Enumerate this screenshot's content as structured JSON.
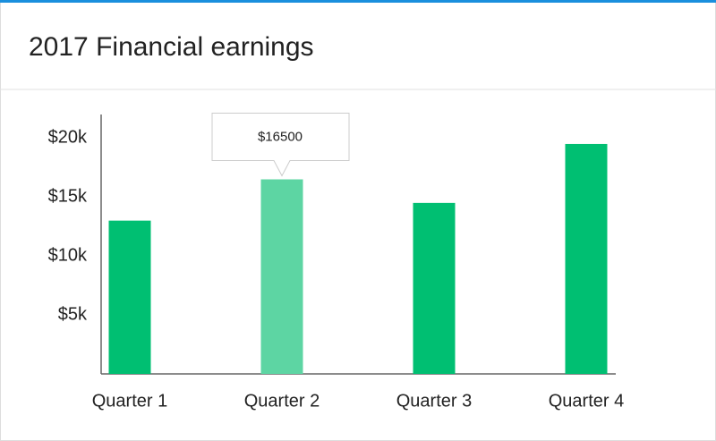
{
  "chart_data": {
    "type": "bar",
    "title": "2017 Financial earnings",
    "categories": [
      "Quarter 1",
      "Quarter 2",
      "Quarter 3",
      "Quarter 4"
    ],
    "values": [
      13000,
      16500,
      14500,
      19500
    ],
    "value_labels": [
      null,
      "$16500",
      null,
      null
    ],
    "colors": [
      "#00bf72",
      "#5dd5a3",
      "#00bf72",
      "#00bf72"
    ],
    "ylim": [
      0,
      22000
    ],
    "yticks": [
      {
        "value": 5000,
        "label": "$5k"
      },
      {
        "value": 10000,
        "label": "$10k"
      },
      {
        "value": 15000,
        "label": "$15k"
      },
      {
        "value": 20000,
        "label": "$20k"
      }
    ],
    "grid": false
  }
}
